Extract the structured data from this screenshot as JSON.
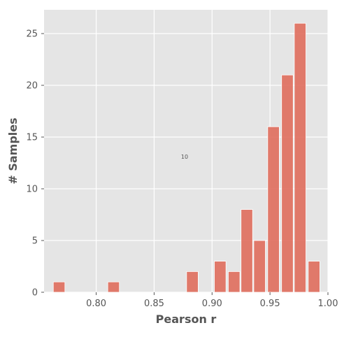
{
  "chart_data": {
    "type": "bar",
    "title": "",
    "xlabel": "Pearson r",
    "ylabel": "# Samples",
    "x_ticks": [
      "0.80",
      "0.85",
      "0.90",
      "0.95",
      "1.00"
    ],
    "y_ticks": [
      "0",
      "5",
      "10",
      "15",
      "20",
      "25"
    ],
    "xlim": [
      0.755,
      1.0
    ],
    "ylim": [
      0,
      27.3
    ],
    "bin_width": 0.01,
    "bins": [
      {
        "x": 0.768,
        "count": 1
      },
      {
        "x": 0.815,
        "count": 1
      },
      {
        "x": 0.883,
        "count": 2
      },
      {
        "x": 0.907,
        "count": 3
      },
      {
        "x": 0.919,
        "count": 2
      },
      {
        "x": 0.93,
        "count": 8
      },
      {
        "x": 0.941,
        "count": 5
      },
      {
        "x": 0.953,
        "count": 16
      },
      {
        "x": 0.965,
        "count": 21
      },
      {
        "x": 0.976,
        "count": 26
      },
      {
        "x": 0.988,
        "count": 3
      }
    ],
    "grid": true,
    "style": {
      "background": "#e5e5e5",
      "bar_color": "#e07060",
      "grid_color": "#ffffff"
    },
    "annotation": "10"
  }
}
